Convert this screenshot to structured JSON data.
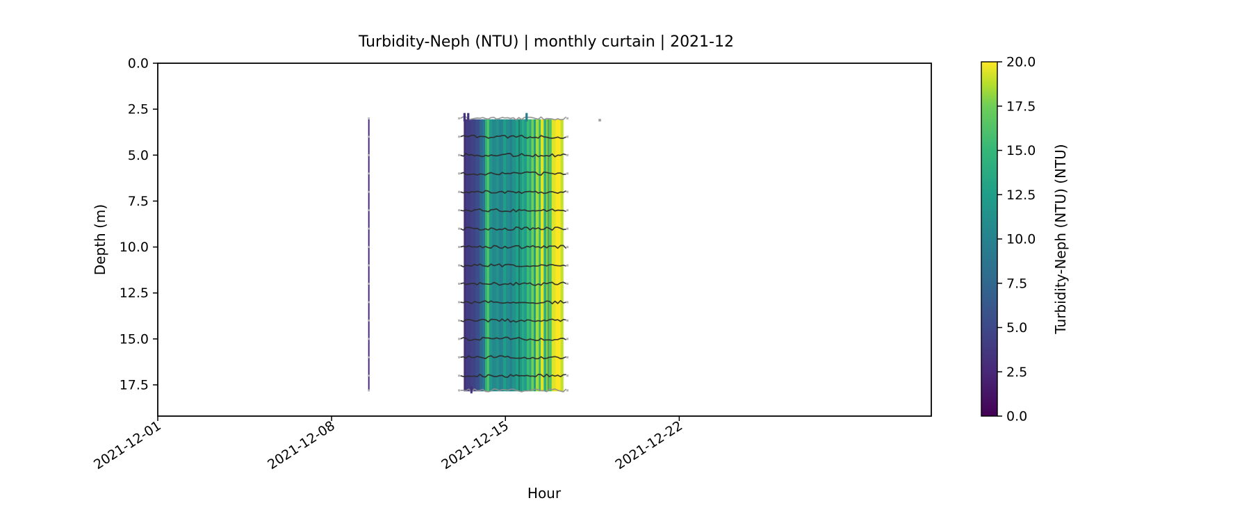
{
  "chart_data": {
    "type": "heatmap",
    "title": "Turbidity-Neph (NTU) | monthly curtain | 2021-12",
    "xlabel": "Hour",
    "ylabel": "Depth (m)",
    "x_tick_labels": [
      "2021-12-01",
      "2021-12-08",
      "2021-12-15",
      "2021-12-22"
    ],
    "x_tick_days": [
      0,
      7,
      14,
      21
    ],
    "x_axis_span_days": 31.15,
    "x_range": [
      "2021-12-01 00:00",
      "2022-01-01 04:00"
    ],
    "y_ticks": [
      0.0,
      2.5,
      5.0,
      7.5,
      10.0,
      12.5,
      15.0,
      17.5
    ],
    "y_axis_range_m": [
      0,
      19.2
    ],
    "y_increases": "downward",
    "grid": false,
    "colorbar": {
      "label": "Turbidity-Neph (NTU) (NTU)",
      "ticks": [
        0.0,
        2.5,
        5.0,
        7.5,
        10.0,
        12.5,
        15.0,
        17.5,
        20.0
      ],
      "vmin": 0.0,
      "vmax": 20.0,
      "colormap": "viridis",
      "viridis_stops": [
        [
          0.0,
          "#440154"
        ],
        [
          0.125,
          "#482878"
        ],
        [
          0.25,
          "#3e4989"
        ],
        [
          0.375,
          "#31688e"
        ],
        [
          0.5,
          "#26828e"
        ],
        [
          0.625,
          "#1f9e89"
        ],
        [
          0.75,
          "#35b779"
        ],
        [
          0.875,
          "#6ece58"
        ],
        [
          0.9375,
          "#b5de2b"
        ],
        [
          1.0,
          "#fde725"
        ]
      ]
    },
    "curtain_block": {
      "start_date": "2021-12-13",
      "end_date": "2021-12-17",
      "start_day": 12.33,
      "end_day": 16.33,
      "depth_top_m": 3.05,
      "depth_bottom_m": 17.85,
      "sensor_row_depths_m": [
        3,
        4,
        5,
        6,
        7,
        8,
        9,
        10,
        11,
        12,
        13,
        14,
        15,
        16,
        17,
        17.8
      ],
      "stripes_ntu": [
        {
          "w": 0.02,
          "v": 2.8
        },
        {
          "w": 0.05,
          "v": 4.0
        },
        {
          "w": 0.05,
          "v": 4.6
        },
        {
          "w": 0.04,
          "v": 5.5
        },
        {
          "w": 0.03,
          "v": 7.5
        },
        {
          "w": 0.025,
          "v": 9.0
        },
        {
          "w": 0.02,
          "v": 14.5
        },
        {
          "w": 0.02,
          "v": 16.5
        },
        {
          "w": 0.03,
          "v": 12.0
        },
        {
          "w": 0.04,
          "v": 10.5
        },
        {
          "w": 0.03,
          "v": 11.5
        },
        {
          "w": 0.04,
          "v": 10.0
        },
        {
          "w": 0.03,
          "v": 12.5
        },
        {
          "w": 0.04,
          "v": 11.0
        },
        {
          "w": 0.02,
          "v": 9.5
        },
        {
          "w": 0.04,
          "v": 11.5
        },
        {
          "w": 0.03,
          "v": 13.0
        },
        {
          "w": 0.03,
          "v": 12.0
        },
        {
          "w": 0.02,
          "v": 14.0
        },
        {
          "w": 0.03,
          "v": 12.5
        },
        {
          "w": 0.025,
          "v": 15.5
        },
        {
          "w": 0.02,
          "v": 13.5
        },
        {
          "w": 0.025,
          "v": 17.5
        },
        {
          "w": 0.02,
          "v": 12.5
        },
        {
          "w": 0.03,
          "v": 18.5
        },
        {
          "w": 0.02,
          "v": 15.0
        },
        {
          "w": 0.03,
          "v": 19.5
        },
        {
          "w": 0.025,
          "v": 14.0
        },
        {
          "w": 0.025,
          "v": 18.0
        },
        {
          "w": 0.03,
          "v": 16.0
        },
        {
          "w": 0.04,
          "v": 19.5
        },
        {
          "w": 0.05,
          "v": 20.0
        },
        {
          "w": 0.025,
          "v": 19.0
        }
      ],
      "dark_streak_days": [
        14.55,
        15.72
      ],
      "top_flags": [
        {
          "day": 12.35,
          "v": 3.0
        },
        {
          "day": 12.5,
          "v": 3.5
        },
        {
          "day": 14.85,
          "v": 9.5
        }
      ],
      "bottom_flags": [
        {
          "day": 12.63,
          "v": 3.0
        }
      ]
    },
    "thin_event": {
      "date": "2021-12-09",
      "day": 8.5,
      "depth_top_m": 3.05,
      "depth_bottom_m": 17.85,
      "value_ntu": 2.5,
      "marker_depths_m": [
        3,
        4,
        5,
        6,
        7,
        8,
        9,
        10,
        11,
        12,
        13,
        14,
        15,
        16,
        17,
        17.8
      ]
    },
    "isolated_point": {
      "day": 17.8,
      "depth_m": 3.1
    }
  },
  "style_colors": {
    "axis": "#000000",
    "sensor_row_dark": "#2b2b2b",
    "sensor_row_light": "#8f8f8f",
    "marker_gray": "#b5b5b5",
    "isolated_gray": "#9e9e9e"
  }
}
